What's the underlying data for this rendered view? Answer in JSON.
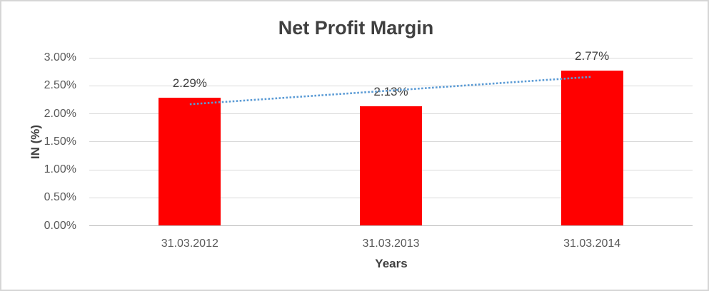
{
  "chart_data": {
    "type": "bar",
    "title": "Net Profit Margin",
    "categories": [
      "31.03.2012",
      "31.03.2013",
      "31.03.2014"
    ],
    "values": [
      2.29,
      2.13,
      2.77
    ],
    "data_labels": [
      "2.29%",
      "2.13%",
      "2.77%"
    ],
    "xlabel": "Years",
    "ylabel": "IN (%)",
    "ylim": [
      0,
      3
    ],
    "ytick_step": 0.5,
    "ytick_labels": [
      "0.00%",
      "0.50%",
      "1.00%",
      "1.50%",
      "2.00%",
      "2.50%",
      "3.00%"
    ],
    "grid": true,
    "legend": "none",
    "bar_color": "#ff0000",
    "trendline": {
      "type": "linear",
      "style": "dotted",
      "color": "#5b9bd5",
      "start_value": 2.17,
      "end_value": 2.66
    },
    "style": {
      "background": "#ffffff",
      "border_color": "#d6d6d6",
      "gridline_color": "#d9d9d9",
      "axisline_color": "#bfbfbf",
      "title_color": "#404040",
      "axis_title_color": "#404040",
      "tick_label_color": "#595959",
      "data_label_color": "#404040"
    }
  }
}
